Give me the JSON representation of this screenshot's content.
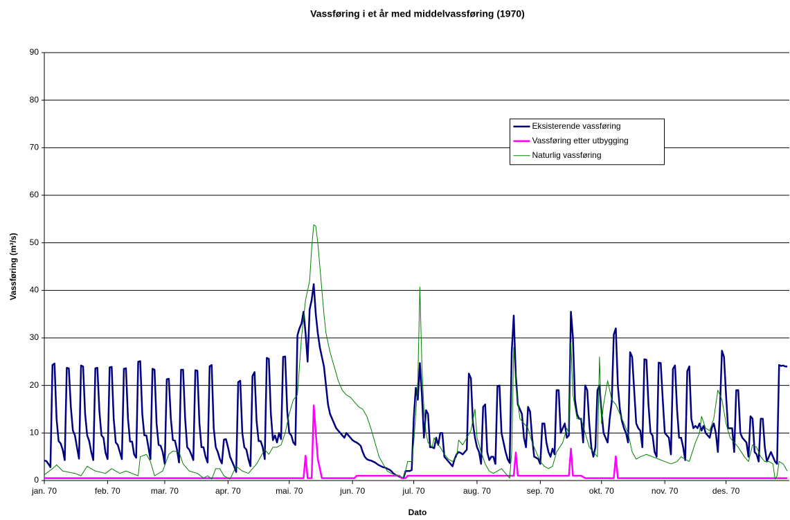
{
  "chart_data": {
    "type": "line",
    "title": "Vassføring i et år med middelvassføring (1970)",
    "x_label": "Dato",
    "y_label": "Vassføring (m³/s)",
    "xlim": [
      0,
      365
    ],
    "xticks": [
      {
        "value": 0,
        "label": "jan. 70"
      },
      {
        "value": 31,
        "label": "feb. 70"
      },
      {
        "value": 59,
        "label": "mar. 70"
      },
      {
        "value": 90,
        "label": "apr. 70"
      },
      {
        "value": 120,
        "label": "mai. 70"
      },
      {
        "value": 151,
        "label": "jun. 70"
      },
      {
        "value": 181,
        "label": "jul. 70"
      },
      {
        "value": 212,
        "label": "aug. 70"
      },
      {
        "value": 243,
        "label": "sep. 70"
      },
      {
        "value": 273,
        "label": "okt. 70"
      },
      {
        "value": 304,
        "label": "nov. 70"
      },
      {
        "value": 334,
        "label": "des. 70"
      }
    ],
    "ylim": [
      0,
      90
    ],
    "yticks": [
      0,
      10,
      20,
      30,
      40,
      50,
      60,
      70,
      80,
      90
    ],
    "grid": true,
    "legend_position": "upper right",
    "series": [
      {
        "name": "Eksisterende vassføring",
        "color": "#000080",
        "width": 2.5,
        "x": [
          0,
          1,
          2,
          3,
          4,
          5,
          6,
          7,
          8,
          9,
          10,
          11,
          12,
          13,
          14,
          15,
          16,
          17,
          18,
          19,
          20,
          21,
          22,
          23,
          24,
          25,
          26,
          27,
          28,
          29,
          30,
          31,
          32,
          33,
          34,
          35,
          36,
          37,
          38,
          39,
          40,
          41,
          42,
          43,
          44,
          45,
          46,
          47,
          48,
          49,
          50,
          51,
          52,
          53,
          54,
          55,
          56,
          57,
          58,
          59,
          60,
          61,
          62,
          63,
          64,
          65,
          66,
          67,
          68,
          69,
          70,
          71,
          72,
          73,
          74,
          75,
          76,
          77,
          78,
          79,
          80,
          81,
          82,
          83,
          84,
          85,
          86,
          87,
          88,
          89,
          90,
          91,
          92,
          93,
          94,
          95,
          96,
          97,
          98,
          99,
          100,
          101,
          102,
          103,
          104,
          105,
          106,
          107,
          108,
          109,
          110,
          111,
          112,
          113,
          114,
          115,
          116,
          117,
          118,
          119,
          120,
          121,
          122,
          123,
          124,
          125,
          126,
          127,
          128,
          129,
          130,
          131,
          132,
          133,
          134,
          135,
          136,
          137,
          138,
          139,
          140,
          141,
          142,
          143,
          144,
          145,
          146,
          147,
          148,
          149,
          150,
          151,
          152,
          153,
          154,
          155,
          156,
          157,
          158,
          159,
          160,
          161,
          162,
          163,
          164,
          165,
          166,
          167,
          168,
          169,
          170,
          171,
          172,
          173,
          174,
          175,
          176,
          177,
          178,
          179,
          180,
          181,
          182,
          183,
          184,
          185,
          186,
          187,
          188,
          189,
          190,
          191,
          192,
          193,
          194,
          195,
          196,
          197,
          198,
          199,
          200,
          201,
          202,
          203,
          204,
          205,
          206,
          207,
          208,
          209,
          210,
          211,
          212,
          213,
          214,
          215,
          216,
          217,
          218,
          219,
          220,
          221,
          222,
          223,
          224,
          225,
          226,
          227,
          228,
          229,
          230,
          231,
          232,
          233,
          234,
          235,
          236,
          237,
          238,
          239,
          240,
          241,
          242,
          243,
          244,
          245,
          246,
          247,
          248,
          249,
          250,
          251,
          252,
          253,
          254,
          255,
          256,
          257,
          258,
          259,
          260,
          261,
          262,
          263,
          264,
          265,
          266,
          267,
          268,
          269,
          270,
          271,
          272,
          273,
          274,
          275,
          276,
          277,
          278,
          279,
          280,
          281,
          282,
          283,
          284,
          285,
          286,
          287,
          288,
          289,
          290,
          291,
          292,
          293,
          294,
          295,
          296,
          297,
          298,
          299,
          300,
          301,
          302,
          303,
          304,
          305,
          306,
          307,
          308,
          309,
          310,
          311,
          312,
          313,
          314,
          315,
          316,
          317,
          318,
          319,
          320,
          321,
          322,
          323,
          324,
          325,
          326,
          327,
          328,
          329,
          330,
          331,
          332,
          333,
          334,
          335,
          336,
          337,
          338,
          339,
          340,
          341,
          342,
          343,
          344,
          345,
          346,
          347,
          348,
          349,
          350,
          351,
          352,
          353,
          354,
          355,
          356,
          357,
          358,
          359,
          360,
          361,
          362,
          363,
          364
        ],
        "values": [
          4.2,
          4.1,
          3.5,
          2.8,
          24.3,
          24.6,
          13,
          8.3,
          7.8,
          6.5,
          4.3,
          23.7,
          23.6,
          15.5,
          10.5,
          9.5,
          7,
          4.6,
          24.2,
          24,
          14,
          9.5,
          8.3,
          6,
          4.3,
          23.6,
          23.7,
          14.5,
          9.5,
          9,
          5.8,
          4.5,
          23.8,
          23.9,
          13,
          8,
          7.5,
          6,
          4.5,
          23.5,
          23.6,
          13,
          8.2,
          8.2,
          5.5,
          4.8,
          25,
          25.1,
          14,
          9.5,
          9.5,
          7,
          4.5,
          23.5,
          23.3,
          12,
          7.5,
          7.3,
          6,
          3.5,
          21.3,
          21.4,
          13,
          8.5,
          8.4,
          6.5,
          3.8,
          23.3,
          23.3,
          13,
          7,
          6.5,
          5.5,
          4.3,
          23.2,
          23.1,
          12,
          7,
          7,
          5,
          3.8,
          24,
          24.3,
          11,
          7,
          6,
          4.5,
          3.6,
          8.6,
          8.7,
          7,
          5,
          4,
          3,
          1.8,
          20.7,
          21,
          10,
          7,
          6.5,
          4.5,
          3,
          22,
          22.8,
          12.5,
          8.3,
          8.3,
          7,
          4.5,
          25.8,
          25.6,
          14,
          8.5,
          9.5,
          8,
          10,
          8.7,
          26,
          26.1,
          14.7,
          10,
          9.5,
          8,
          7.5,
          30.5,
          32,
          33,
          35.5,
          31,
          25,
          36,
          38,
          41.3,
          35,
          31,
          28,
          26,
          24,
          20,
          16,
          14,
          13,
          12,
          11,
          10.5,
          10,
          9.5,
          9,
          10,
          9.5,
          9,
          8.5,
          8.2,
          8,
          7.7,
          7.3,
          6,
          5,
          4.5,
          4.3,
          4.2,
          4,
          3.8,
          3.5,
          3.2,
          3,
          2.8,
          2.7,
          2.5,
          2.3,
          2,
          1.5,
          1.2,
          1,
          0.8,
          0.6,
          0.5,
          2,
          2,
          2,
          2.2,
          13,
          19.5,
          17,
          24.7,
          18,
          9,
          14.8,
          14,
          7,
          7,
          6.8,
          9,
          7.5,
          10,
          10,
          5,
          4.5,
          4,
          3.5,
          3,
          4.5,
          5.5,
          6,
          5.8,
          5.5,
          6,
          6.5,
          22.5,
          21.5,
          12,
          9,
          7,
          6,
          3.5,
          15.5,
          16,
          6,
          4.3,
          5,
          5,
          3.5,
          19.8,
          20,
          10,
          8,
          6,
          4.5,
          3.7,
          27,
          34.7,
          22,
          16,
          15,
          14,
          9,
          7,
          15.5,
          14.5,
          9,
          5,
          4.8,
          4.5,
          3.5,
          12,
          12,
          8,
          6,
          5,
          6.7,
          5.5,
          19,
          19,
          10,
          11,
          12,
          9,
          9.5,
          35.5,
          30,
          17,
          14,
          13,
          13,
          8,
          20,
          19,
          12,
          7,
          5,
          7,
          19,
          20,
          14.5,
          10,
          9,
          8,
          13,
          16.5,
          30.7,
          32,
          20,
          15,
          12.5,
          11,
          10,
          8,
          27,
          26,
          19,
          12,
          11,
          10.5,
          7,
          25.5,
          25.4,
          16,
          10,
          9.5,
          6,
          5,
          24.8,
          24.7,
          17,
          10,
          9.5,
          9,
          5.5,
          23.5,
          24.2,
          15,
          9,
          9,
          7,
          4.3,
          23,
          24,
          13,
          11,
          11.5,
          11,
          12,
          10.5,
          11.5,
          10,
          9.5,
          9,
          11,
          12,
          10,
          6,
          15,
          27.3,
          26,
          18,
          11,
          11,
          11,
          6,
          19,
          19,
          10,
          9,
          8.5,
          8,
          5,
          13.5,
          13,
          6,
          5.5,
          4,
          13,
          13,
          7,
          4,
          5,
          6,
          5,
          4,
          3.5,
          24.3,
          24.1,
          24.2,
          24,
          24
        ]
      },
      {
        "name": "Vassføring etter utbygging",
        "color": "#ff00ff",
        "width": 2.5,
        "x": [
          0,
          127,
          128,
          129,
          131,
          132,
          134,
          136,
          152,
          153,
          174,
          175,
          177,
          178,
          230,
          231,
          232,
          257,
          258,
          259,
          263,
          265,
          279,
          280,
          281,
          364
        ],
        "values": [
          0.5,
          0.5,
          5.2,
          0.5,
          0.5,
          15.8,
          4.5,
          0.5,
          0.5,
          1,
          1,
          0.5,
          0.5,
          1,
          1,
          5.9,
          1,
          1,
          6.7,
          1,
          1,
          0.5,
          0.5,
          5.1,
          0.5,
          0.5
        ]
      },
      {
        "name": "Naturlig vassføring",
        "color": "#008000",
        "width": 1,
        "x": [
          0,
          4,
          6,
          9,
          15,
          18,
          21,
          25,
          30,
          33,
          37,
          40,
          43,
          46,
          47,
          50,
          52,
          54,
          58,
          61,
          63,
          66,
          68,
          71,
          75,
          78,
          80,
          82,
          84,
          86,
          88,
          91,
          94,
          97,
          100,
          102,
          104,
          106,
          108,
          110,
          112,
          114,
          116,
          118,
          120,
          122,
          124,
          126,
          128,
          130,
          131,
          132,
          133,
          134,
          135,
          136,
          137,
          138,
          140,
          142,
          144,
          146,
          148,
          150,
          152,
          154,
          156,
          158,
          160,
          162,
          164,
          166,
          168,
          170,
          172,
          174,
          176,
          177,
          178,
          180,
          181,
          182,
          183,
          184,
          185,
          186,
          187,
          188,
          190,
          191,
          192,
          194,
          196,
          198,
          200,
          202,
          203,
          205,
          207,
          209,
          211,
          212,
          214,
          216,
          218,
          220,
          222,
          224,
          226,
          228,
          229,
          230,
          231,
          233,
          235,
          237,
          239,
          241,
          243,
          245,
          247,
          249,
          251,
          254,
          256,
          257,
          258,
          259,
          261,
          263,
          265,
          267,
          269,
          271,
          272,
          273,
          274,
          276,
          278,
          280,
          282,
          284,
          286,
          288,
          290,
          292,
          295,
          298,
          301,
          304,
          307,
          310,
          312,
          314,
          316,
          319,
          321,
          322,
          324,
          326,
          328,
          330,
          332,
          334,
          336,
          338,
          340,
          343,
          345,
          347,
          349,
          351,
          353,
          355,
          357,
          358,
          359,
          360,
          362,
          364
        ],
        "values": [
          1.2,
          2.5,
          3.3,
          2,
          1.5,
          1,
          3,
          2,
          1.5,
          2.5,
          1.5,
          2,
          1.5,
          1,
          5,
          5.5,
          4,
          1,
          2,
          5.5,
          6.2,
          6,
          3.5,
          2,
          1.5,
          0.5,
          1,
          0.3,
          2.5,
          2.5,
          1,
          0.3,
          3,
          2,
          1.5,
          2.5,
          3.5,
          5,
          6.5,
          5.5,
          7,
          7,
          7.5,
          10,
          14,
          17,
          18,
          30,
          38,
          42,
          49,
          53.8,
          53.5,
          50,
          45,
          40,
          35,
          31,
          27,
          24,
          21,
          19,
          18,
          17.5,
          16.5,
          15.5,
          15,
          13.5,
          11,
          8,
          5,
          3.5,
          2,
          1.5,
          1.2,
          1,
          0.5,
          2,
          4,
          4,
          8,
          14,
          21,
          40.7,
          24,
          15,
          10,
          8,
          7,
          9,
          8,
          7,
          5.5,
          4.5,
          4,
          5,
          8.5,
          7.5,
          9,
          10.5,
          15,
          9,
          6,
          3.5,
          2,
          1.5,
          2,
          2.5,
          1.5,
          0.5,
          6,
          28,
          20,
          13,
          12,
          11,
          8,
          6,
          4,
          3,
          2.5,
          3,
          6,
          8,
          11,
          10,
          29,
          18,
          13,
          13,
          10,
          7,
          6,
          5,
          26,
          12,
          16,
          21,
          17,
          16,
          14,
          12,
          10,
          6,
          4.5,
          5,
          5.5,
          5,
          4.5,
          4,
          3.5,
          4,
          5,
          4.5,
          4,
          8,
          10,
          13.5,
          11,
          10.5,
          13,
          19,
          17,
          12,
          9,
          8,
          7,
          5,
          4,
          7.5,
          7,
          5,
          4,
          4,
          3.5,
          0.3,
          1,
          4,
          3.5,
          2
        ]
      }
    ]
  }
}
